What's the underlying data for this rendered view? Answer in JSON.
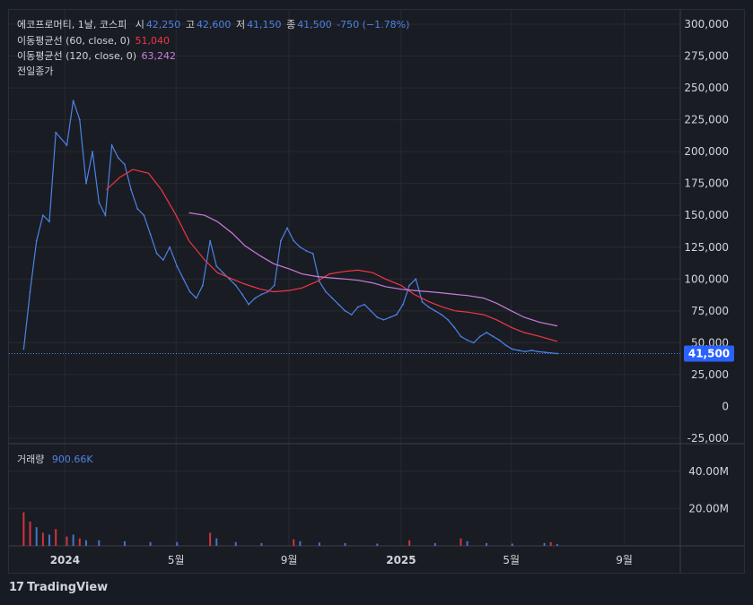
{
  "header": {
    "symbol": "에코프로머티, 1날, 코스피",
    "open_label": "시",
    "open": "42,250",
    "high_label": "고",
    "high": "42,600",
    "low_label": "저",
    "low": "41,150",
    "close_label": "종",
    "close": "41,500",
    "change": "-750 (−1.78%)"
  },
  "indicators": {
    "ma60": {
      "label": "이동평균선 (60, close, 0)",
      "value": "51,040",
      "color": "#f23645"
    },
    "ma120": {
      "label": "이동평균선 (120, close, 0)",
      "value": "63,242",
      "color": "#c77ddb"
    },
    "prev_close": {
      "label": "전일종가"
    }
  },
  "volume_pane": {
    "label": "거래량",
    "value": "900.66K"
  },
  "price_badge": "41,500",
  "watermark": {
    "logo": "17",
    "text": "TradingView"
  },
  "chart_data": [
    {
      "type": "line",
      "pane": "price",
      "ylim": [
        -25000,
        300000
      ],
      "yticks": [
        "300,000",
        "275,000",
        "250,000",
        "225,000",
        "200,000",
        "175,000",
        "150,000",
        "125,000",
        "100,000",
        "75,000",
        "50,000",
        "25,000",
        "0",
        "-25,000"
      ],
      "ytick_values": [
        300000,
        275000,
        250000,
        225000,
        200000,
        175000,
        150000,
        125000,
        100000,
        75000,
        50000,
        25000,
        0,
        -25000
      ],
      "xticks": [
        "2024",
        "5월",
        "9월",
        "2025",
        "5월",
        "9월"
      ],
      "xtick_dates": [
        "2024-01-01",
        "2024-05-01",
        "2024-09-01",
        "2025-01-01",
        "2025-05-01",
        "2025-09-01"
      ],
      "xlim": [
        "2023-11-01",
        "2025-11-01"
      ],
      "last_price": 41500,
      "series": [
        {
          "name": "종가",
          "color": "#4c82e6",
          "x": [
            "2023-11-17",
            "2023-11-24",
            "2023-12-01",
            "2023-12-08",
            "2023-12-15",
            "2023-12-22",
            "2024-01-03",
            "2024-01-10",
            "2024-01-17",
            "2024-01-24",
            "2024-01-31",
            "2024-02-07",
            "2024-02-14",
            "2024-02-21",
            "2024-02-28",
            "2024-03-06",
            "2024-03-13",
            "2024-03-20",
            "2024-03-27",
            "2024-04-03",
            "2024-04-10",
            "2024-04-17",
            "2024-04-24",
            "2024-05-02",
            "2024-05-09",
            "2024-05-16",
            "2024-05-23",
            "2024-05-30",
            "2024-06-07",
            "2024-06-14",
            "2024-06-21",
            "2024-06-28",
            "2024-07-05",
            "2024-07-12",
            "2024-07-19",
            "2024-07-26",
            "2024-08-02",
            "2024-08-09",
            "2024-08-16",
            "2024-08-23",
            "2024-08-30",
            "2024-09-06",
            "2024-09-13",
            "2024-09-20",
            "2024-09-27",
            "2024-10-04",
            "2024-10-11",
            "2024-10-18",
            "2024-10-25",
            "2024-11-01",
            "2024-11-08",
            "2024-11-15",
            "2024-11-22",
            "2024-11-29",
            "2024-12-06",
            "2024-12-13",
            "2024-12-20",
            "2024-12-27",
            "2025-01-03",
            "2025-01-10",
            "2025-01-17",
            "2025-01-24",
            "2025-01-31",
            "2025-02-07",
            "2025-02-14",
            "2025-02-21",
            "2025-02-28",
            "2025-03-07",
            "2025-03-14",
            "2025-03-21",
            "2025-03-28",
            "2025-04-04",
            "2025-04-11",
            "2025-04-18",
            "2025-04-25",
            "2025-05-02",
            "2025-05-09",
            "2025-05-16",
            "2025-05-23",
            "2025-05-30",
            "2025-06-06",
            "2025-06-13",
            "2025-06-20"
          ],
          "values": [
            45000,
            90000,
            130000,
            150000,
            145000,
            215000,
            205000,
            240000,
            225000,
            175000,
            200000,
            160000,
            150000,
            205000,
            195000,
            190000,
            170000,
            155000,
            150000,
            135000,
            120000,
            115000,
            125000,
            110000,
            100000,
            90000,
            85000,
            95000,
            130000,
            110000,
            105000,
            100000,
            95000,
            88000,
            80000,
            85000,
            88000,
            90000,
            95000,
            130000,
            140000,
            130000,
            125000,
            122000,
            120000,
            98000,
            90000,
            85000,
            80000,
            75000,
            72000,
            78000,
            80000,
            75000,
            70000,
            68000,
            70000,
            72000,
            80000,
            95000,
            100000,
            82000,
            78000,
            75000,
            72000,
            68000,
            62000,
            55000,
            52000,
            50000,
            55000,
            58000,
            55000,
            52000,
            48000,
            45000,
            44000,
            43000,
            44000,
            43000,
            42500,
            42000,
            41500
          ]
        },
        {
          "name": "이동평균선 (60)",
          "color": "#f23645",
          "x": [
            "2024-02-15",
            "2024-03-01",
            "2024-03-15",
            "2024-04-01",
            "2024-04-15",
            "2024-05-01",
            "2024-05-15",
            "2024-06-01",
            "2024-06-15",
            "2024-07-01",
            "2024-07-15",
            "2024-08-01",
            "2024-08-15",
            "2024-09-01",
            "2024-09-15",
            "2024-10-01",
            "2024-10-15",
            "2024-11-01",
            "2024-11-15",
            "2024-12-01",
            "2024-12-15",
            "2025-01-01",
            "2025-01-15",
            "2025-02-01",
            "2025-02-15",
            "2025-03-01",
            "2025-03-15",
            "2025-04-01",
            "2025-04-15",
            "2025-05-01",
            "2025-05-15",
            "2025-06-01",
            "2025-06-20"
          ],
          "values": [
            170000,
            180000,
            186000,
            183000,
            170000,
            150000,
            130000,
            115000,
            105000,
            100000,
            96000,
            92000,
            90000,
            91000,
            93000,
            98000,
            104000,
            106000,
            107000,
            105000,
            100000,
            95000,
            88000,
            82000,
            78000,
            75000,
            74000,
            72000,
            68000,
            62000,
            58000,
            55000,
            51040
          ]
        },
        {
          "name": "이동평균선 (120)",
          "color": "#c77ddb",
          "x": [
            "2024-05-15",
            "2024-06-01",
            "2024-06-15",
            "2024-07-01",
            "2024-07-15",
            "2024-08-01",
            "2024-08-15",
            "2024-09-01",
            "2024-09-15",
            "2024-10-01",
            "2024-10-15",
            "2024-11-01",
            "2024-11-15",
            "2024-12-01",
            "2024-12-15",
            "2025-01-01",
            "2025-01-15",
            "2025-02-01",
            "2025-02-15",
            "2025-03-01",
            "2025-03-15",
            "2025-04-01",
            "2025-04-15",
            "2025-05-01",
            "2025-05-15",
            "2025-06-01",
            "2025-06-20"
          ],
          "values": [
            152000,
            150000,
            145000,
            136000,
            126000,
            118000,
            112000,
            108000,
            104000,
            102000,
            101000,
            100000,
            99000,
            97000,
            94000,
            92000,
            91000,
            90000,
            89000,
            88000,
            87000,
            85000,
            81000,
            75000,
            70000,
            66000,
            63242
          ]
        }
      ]
    },
    {
      "type": "bar",
      "pane": "volume",
      "ylim": [
        0,
        50000000
      ],
      "yticks": [
        "40.00M",
        "20.00M"
      ],
      "ytick_values": [
        40000000,
        20000000
      ],
      "x": [
        "2023-11-17",
        "2023-11-24",
        "2023-12-01",
        "2023-12-08",
        "2023-12-15",
        "2023-12-22",
        "2024-01-03",
        "2024-01-10",
        "2024-01-17",
        "2024-01-24",
        "2024-02-07",
        "2024-03-06",
        "2024-04-03",
        "2024-05-02",
        "2024-06-07",
        "2024-06-14",
        "2024-07-05",
        "2024-08-02",
        "2024-09-06",
        "2024-09-13",
        "2024-10-04",
        "2024-11-01",
        "2024-12-06",
        "2025-01-10",
        "2025-02-07",
        "2025-03-07",
        "2025-03-14",
        "2025-04-04",
        "2025-05-02",
        "2025-06-06",
        "2025-06-13",
        "2025-06-20"
      ],
      "values": [
        18000000,
        13000000,
        10000000,
        7000000,
        6000000,
        9000000,
        5000000,
        6000000,
        4000000,
        3000000,
        3000000,
        2500000,
        2000000,
        2000000,
        7000000,
        4000000,
        2000000,
        1500000,
        3500000,
        2500000,
        1800000,
        1500000,
        1200000,
        3000000,
        1500000,
        4000000,
        2500000,
        1500000,
        1200000,
        1500000,
        2000000,
        900660
      ],
      "colors": [
        "#f23645",
        "#f23645",
        "#4c82e6",
        "#f23645",
        "#4c82e6",
        "#f23645",
        "#f23645",
        "#4c82e6",
        "#f23645",
        "#4c82e6",
        "#4c82e6",
        "#4c82e6",
        "#4c82e6",
        "#4c82e6",
        "#f23645",
        "#4c82e6",
        "#4c82e6",
        "#4c82e6",
        "#f23645",
        "#4c82e6",
        "#4c82e6",
        "#4c82e6",
        "#4c82e6",
        "#f23645",
        "#4c82e6",
        "#f23645",
        "#4c82e6",
        "#4c82e6",
        "#4c82e6",
        "#4c82e6",
        "#f23645",
        "#4c82e6"
      ]
    }
  ]
}
